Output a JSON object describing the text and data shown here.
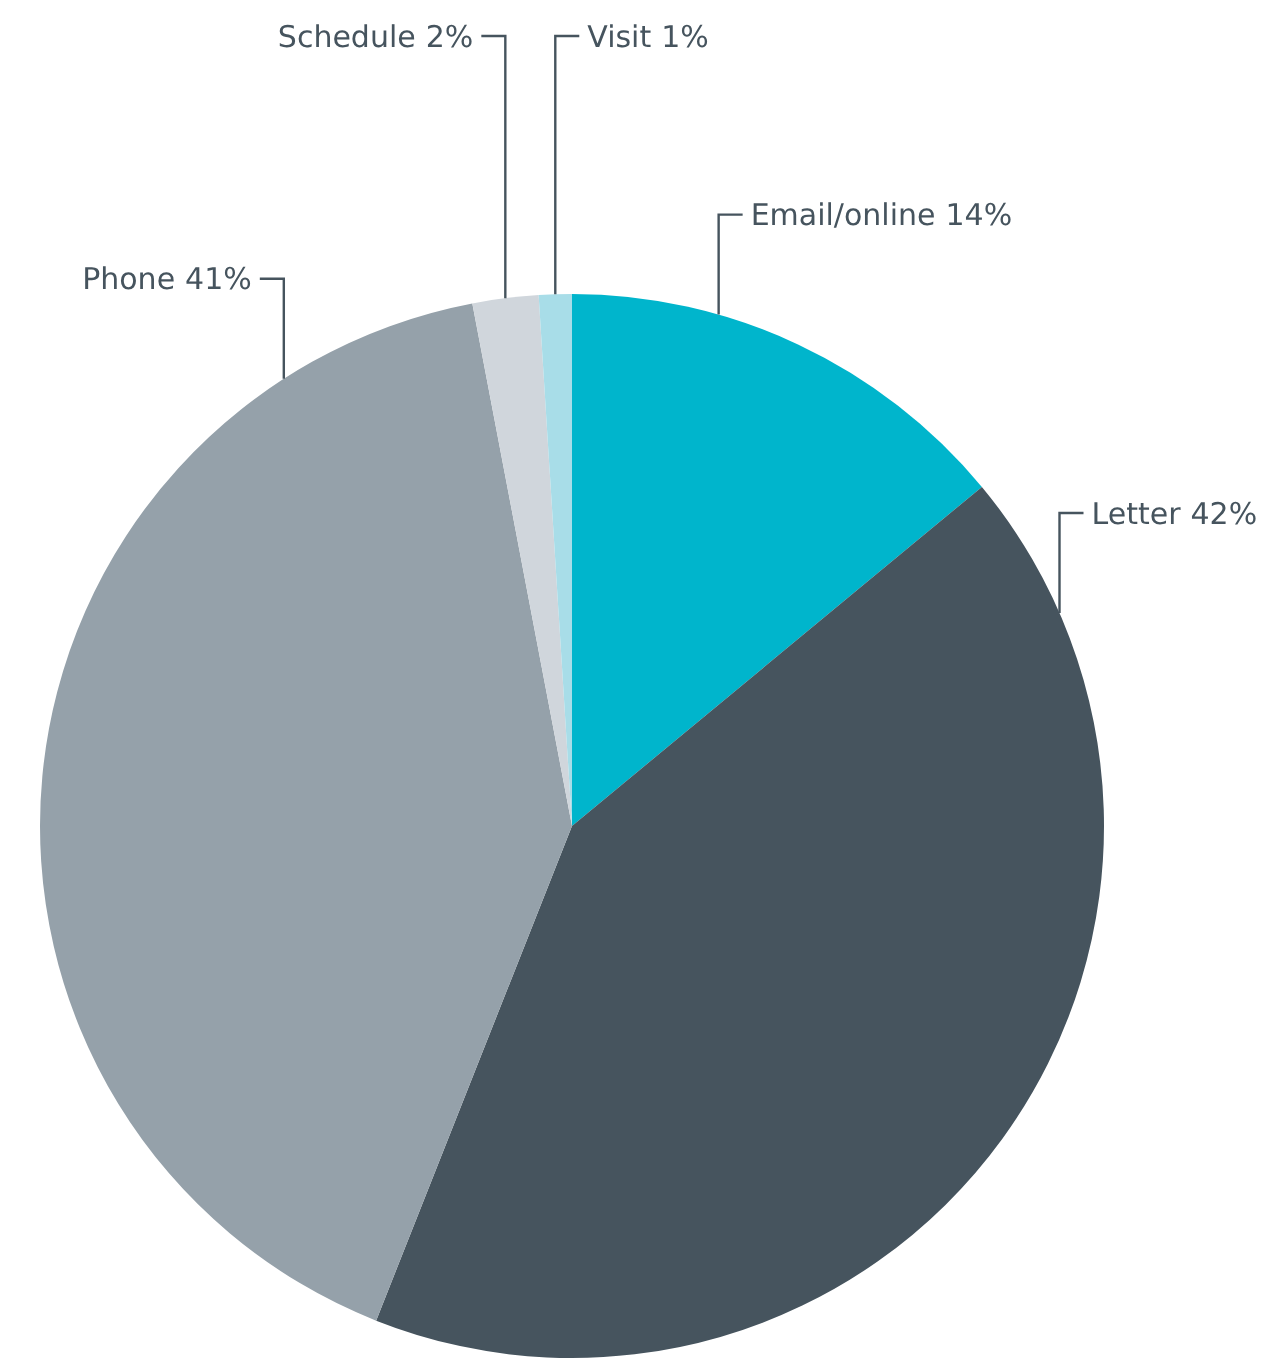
{
  "chart_data": {
    "type": "pie",
    "categories": [
      "Email/online",
      "Letter",
      "Phone",
      "Schedule",
      "Visit"
    ],
    "values": [
      14,
      42,
      41,
      2,
      1
    ],
    "colors": [
      "#00b5cc",
      "#46545e",
      "#95a1aa",
      "#d0d6dc",
      "#a8dde8"
    ],
    "value_labels": [
      "14%",
      "42%",
      "41%",
      "2%",
      "1%"
    ]
  }
}
